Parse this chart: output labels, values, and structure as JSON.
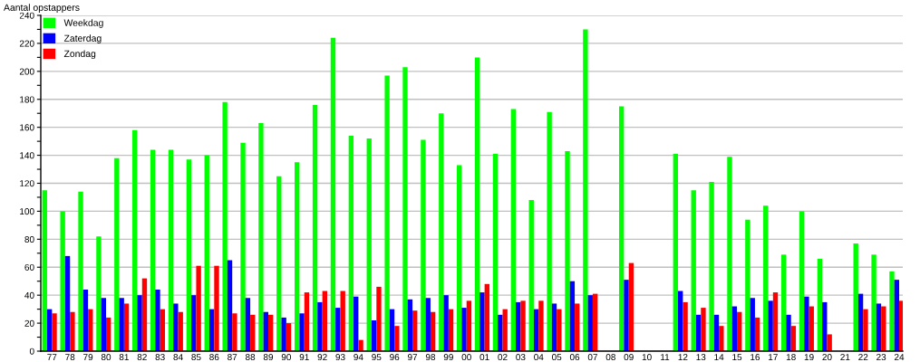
{
  "chart_data": {
    "type": "bar",
    "ylabel": "Aantal opstappers",
    "categories": [
      "77",
      "78",
      "79",
      "80",
      "81",
      "82",
      "83",
      "84",
      "85",
      "86",
      "87",
      "88",
      "89",
      "90",
      "91",
      "92",
      "93",
      "94",
      "95",
      "96",
      "97",
      "98",
      "99",
      "00",
      "01",
      "02",
      "03",
      "04",
      "05",
      "06",
      "07",
      "08",
      "09",
      "10",
      "11",
      "12",
      "13",
      "14",
      "15",
      "16",
      "17",
      "18",
      "19",
      "20",
      "21",
      "22",
      "23",
      "24"
    ],
    "series": [
      {
        "name": "Weekdag",
        "color": "#00ff00",
        "values": [
          115,
          100,
          114,
          82,
          138,
          158,
          144,
          144,
          137,
          140,
          178,
          149,
          163,
          125,
          135,
          176,
          224,
          154,
          152,
          197,
          203,
          151,
          170,
          133,
          210,
          141,
          173,
          108,
          171,
          143,
          230,
          null,
          175,
          null,
          null,
          141,
          115,
          121,
          139,
          94,
          104,
          69,
          100,
          66,
          null,
          77,
          69,
          57
        ]
      },
      {
        "name": "Zaterdag",
        "color": "#0000ff",
        "values": [
          30,
          68,
          44,
          38,
          38,
          40,
          44,
          34,
          40,
          30,
          65,
          38,
          28,
          24,
          27,
          35,
          31,
          39,
          22,
          30,
          37,
          38,
          40,
          31,
          42,
          26,
          35,
          30,
          34,
          50,
          40,
          null,
          51,
          null,
          null,
          43,
          26,
          26,
          32,
          38,
          36,
          26,
          39,
          35,
          null,
          41,
          34,
          51
        ]
      },
      {
        "name": "Zondag",
        "color": "#ff0000",
        "values": [
          27,
          28,
          30,
          24,
          34,
          52,
          30,
          28,
          61,
          61,
          27,
          26,
          26,
          20,
          42,
          43,
          43,
          8,
          46,
          18,
          29,
          28,
          30,
          36,
          48,
          30,
          36,
          36,
          30,
          34,
          41,
          null,
          63,
          null,
          null,
          35,
          31,
          18,
          28,
          24,
          42,
          18,
          32,
          12,
          null,
          30,
          32,
          36
        ]
      }
    ],
    "ylim": [
      0,
      240
    ],
    "yticks": [
      0,
      {
        "value": 10,
        "label": null
      },
      20,
      {
        "value": 30,
        "label": null
      },
      40,
      {
        "value": 50,
        "label": null
      },
      60,
      {
        "value": 70,
        "label": null
      },
      80,
      {
        "value": 90,
        "label": null
      },
      100,
      {
        "value": 110,
        "label": null
      },
      120,
      {
        "value": 130,
        "label": null
      },
      140,
      {
        "value": 150,
        "label": null
      },
      160,
      {
        "value": 170,
        "label": null
      },
      180,
      {
        "value": 190,
        "label": null
      },
      200,
      {
        "value": 210,
        "label": null
      },
      220,
      {
        "value": 230,
        "label": null
      },
      240
    ],
    "grid": "y",
    "legend": "top left"
  }
}
